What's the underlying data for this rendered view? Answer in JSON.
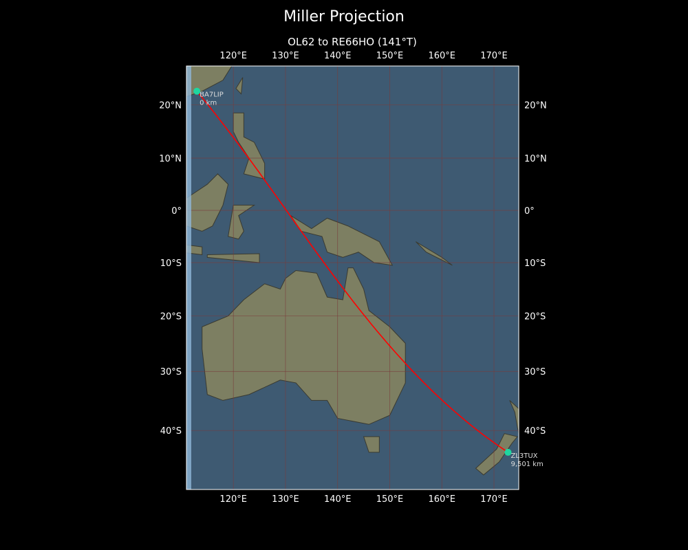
{
  "title": "Miller Projection",
  "subtitle": "OL62 to RE66HO (141°T)",
  "map": {
    "projection": "miller",
    "lon_range": [
      111,
      174.75
    ],
    "lat_range": [
      -50,
      27.5
    ],
    "ocean_color": "#3e5a72",
    "land_color": "#7d7f62",
    "path_color": "#ff0000",
    "marker_color": "#1fd6a0",
    "lon_ticks": [
      {
        "value": 120,
        "label": "120°E"
      },
      {
        "value": 130,
        "label": "130°E"
      },
      {
        "value": 140,
        "label": "140°E"
      },
      {
        "value": 150,
        "label": "150°E"
      },
      {
        "value": 160,
        "label": "160°E"
      },
      {
        "value": 170,
        "label": "170°E"
      }
    ],
    "lat_ticks": [
      {
        "value": 20,
        "label": "20°N"
      },
      {
        "value": 10,
        "label": "10°N"
      },
      {
        "value": 0,
        "label": "0°"
      },
      {
        "value": -10,
        "label": "10°S"
      },
      {
        "value": -20,
        "label": "20°S"
      },
      {
        "value": -30,
        "label": "30°S"
      },
      {
        "value": -40,
        "label": "40°S"
      }
    ],
    "stations": [
      {
        "call": "BA7LIP",
        "distance": "0 km",
        "lon": 113.0,
        "lat": 22.5
      },
      {
        "call": "ZL3TUX",
        "distance": "9,501 km",
        "lon": 172.7,
        "lat": -43.5
      }
    ]
  }
}
